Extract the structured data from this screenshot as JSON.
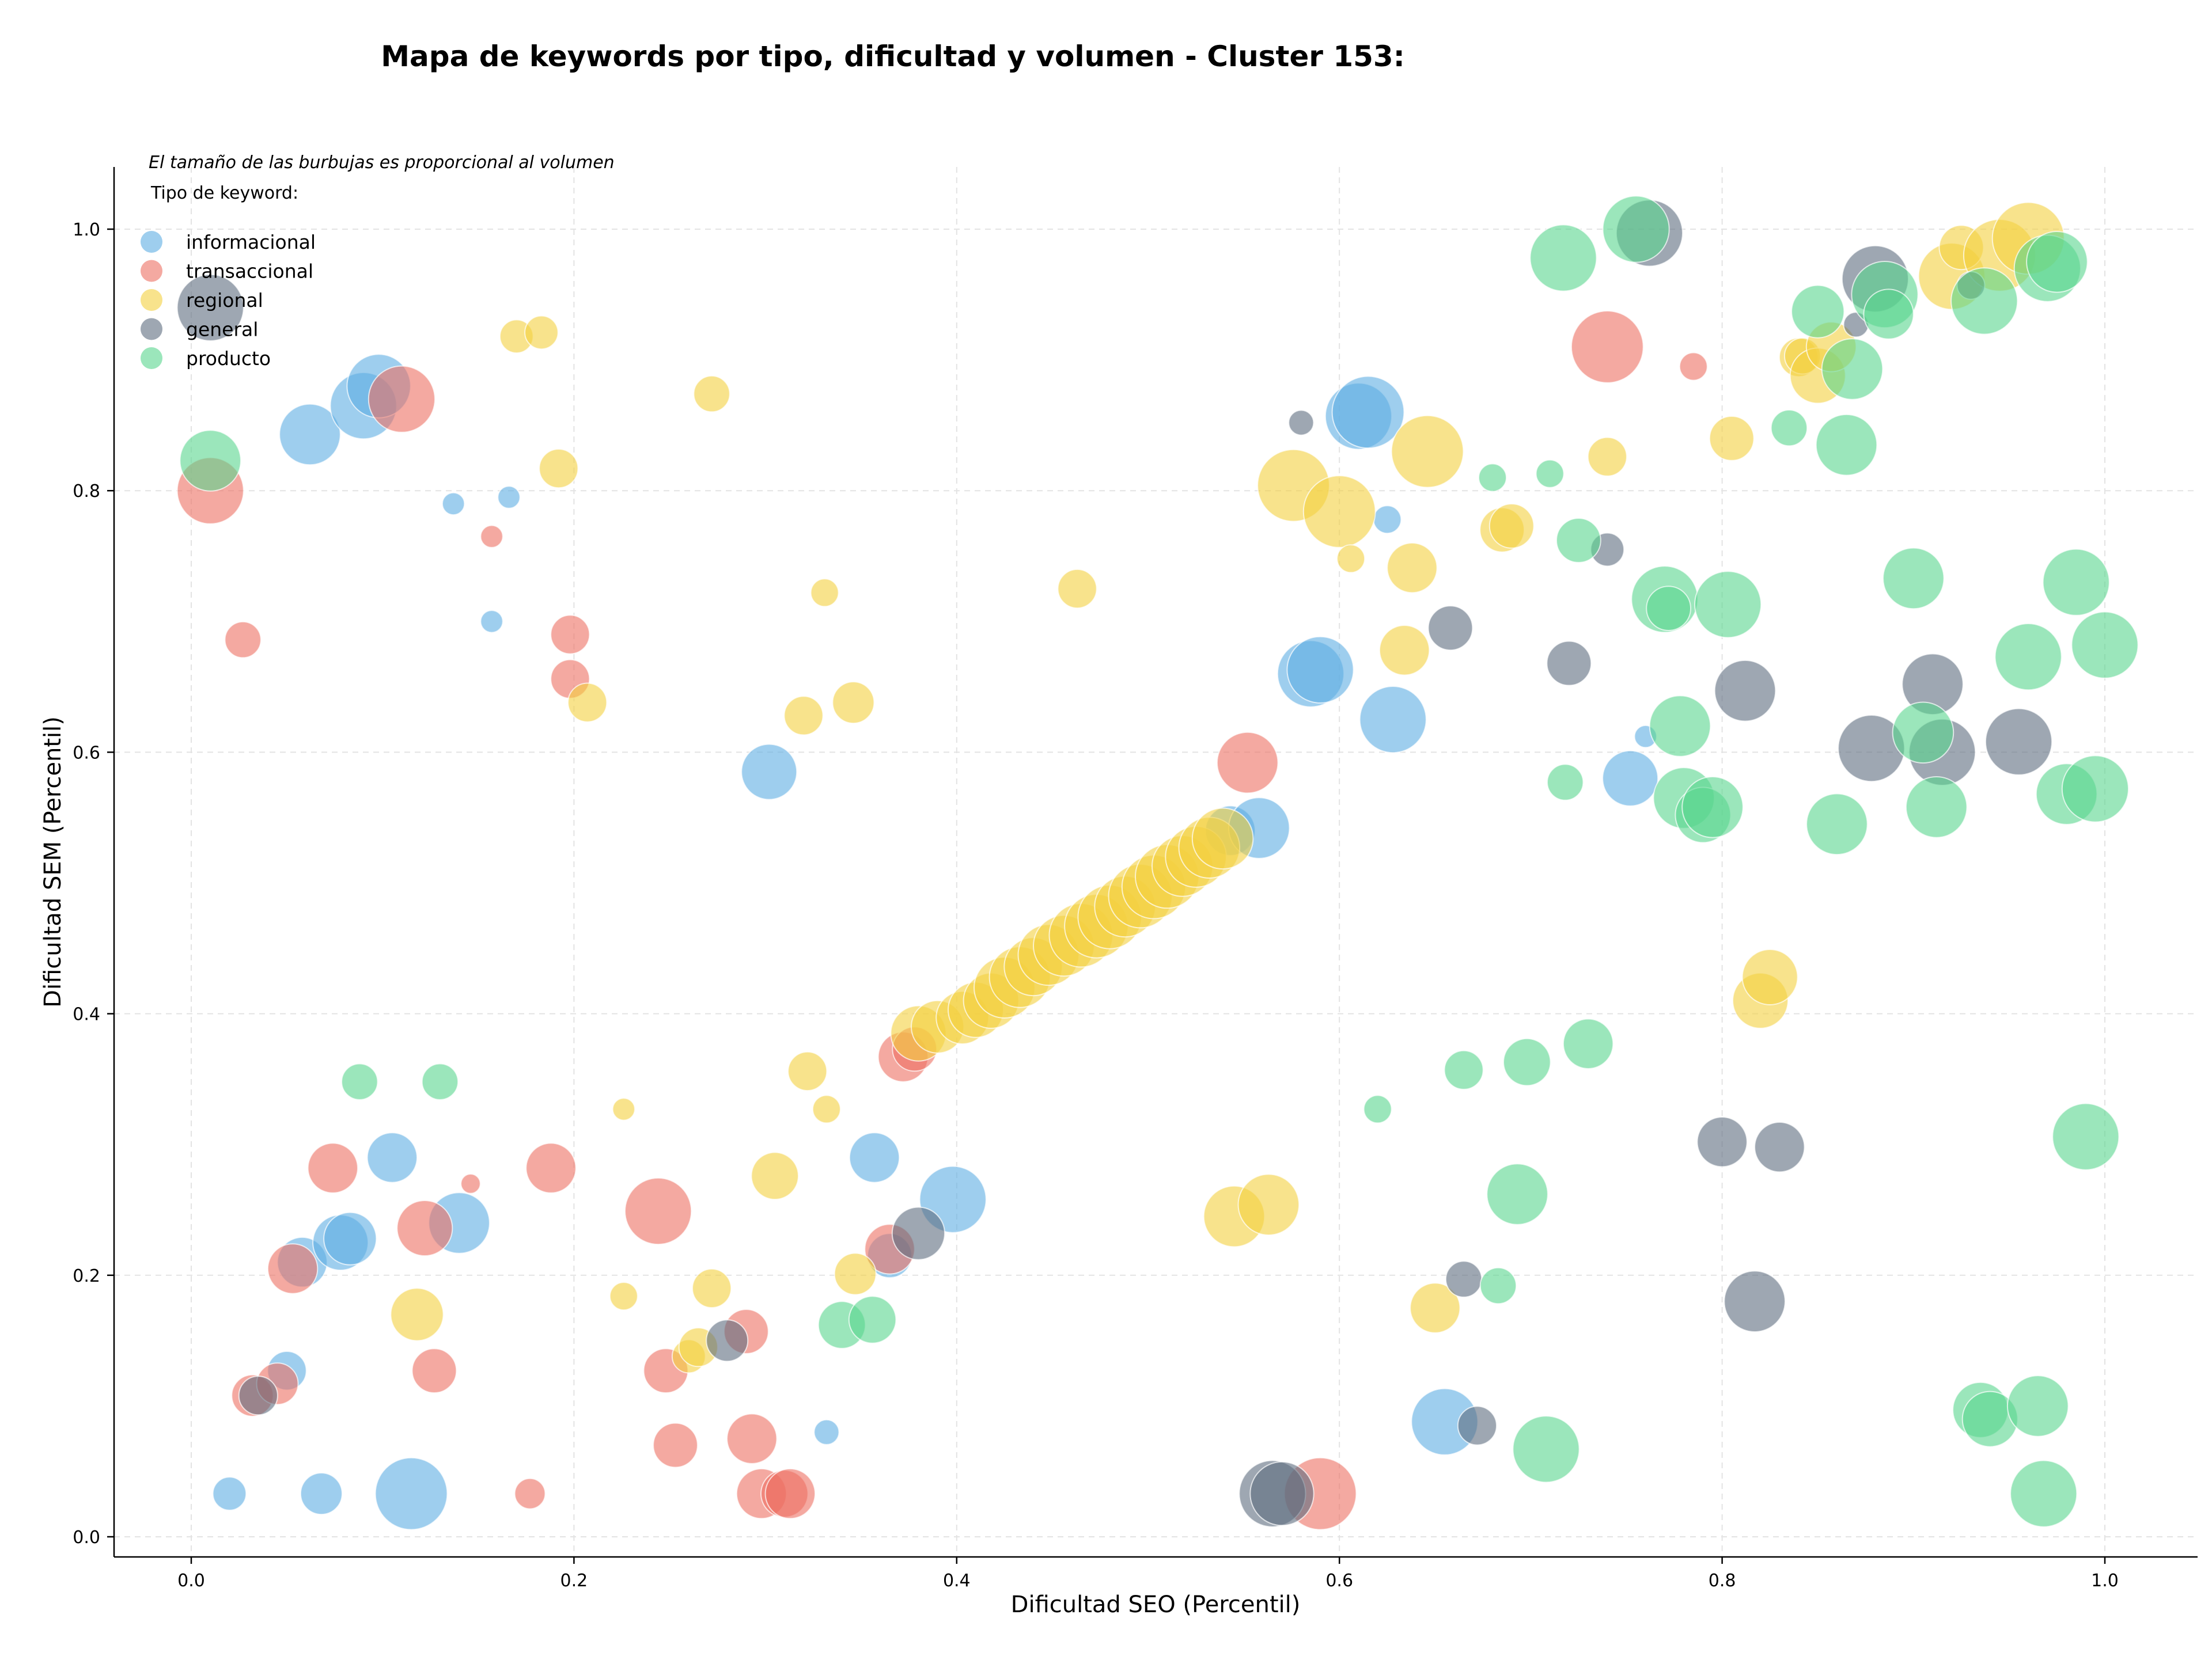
{
  "chart_data": {
    "type": "scatter",
    "title": "Mapa de keywords por tipo, dificultad y volumen - Cluster 153:",
    "xlabel": "Dificultad SEO (Percentil)",
    "ylabel": "Dificultad SEM (Percentil)",
    "xlim": [
      -0.04,
      1.05
    ],
    "ylim": [
      -0.015,
      1.05
    ],
    "x_ticks": [
      "0.0",
      "0.2",
      "0.4",
      "0.6",
      "0.8",
      "1.0"
    ],
    "y_ticks": [
      "0.0",
      "0.2",
      "0.4",
      "0.6",
      "0.8",
      "1.0"
    ],
    "grid": true,
    "annotation": "El tamaño de las burbujas es proporcional al volumen",
    "legend_title": "Tipo de keyword:",
    "legend_position": "top-left",
    "series": [
      {
        "name": "informacional",
        "color": "#5dade2",
        "points": [
          [
            0.02,
            0.033,
            1.2
          ],
          [
            0.068,
            0.033,
            1.5
          ],
          [
            0.115,
            0.033,
            2.6
          ],
          [
            0.05,
            0.127,
            1.4
          ],
          [
            0.058,
            0.21,
            1.8
          ],
          [
            0.078,
            0.225,
            2.0
          ],
          [
            0.083,
            0.228,
            1.9
          ],
          [
            0.105,
            0.29,
            1.8
          ],
          [
            0.14,
            0.24,
            2.2
          ],
          [
            0.062,
            0.843,
            2.2
          ],
          [
            0.09,
            0.865,
            2.4
          ],
          [
            0.098,
            0.88,
            2.3
          ],
          [
            0.137,
            0.79,
            0.8
          ],
          [
            0.166,
            0.795,
            0.8
          ],
          [
            0.157,
            0.7,
            0.8
          ],
          [
            0.302,
            0.585,
            2.0
          ],
          [
            0.332,
            0.08,
            0.9
          ],
          [
            0.357,
            0.29,
            1.8
          ],
          [
            0.365,
            0.215,
            1.6
          ],
          [
            0.398,
            0.258,
            2.4
          ],
          [
            0.543,
            0.54,
            1.8
          ],
          [
            0.558,
            0.542,
            2.2
          ],
          [
            0.585,
            0.66,
            2.4
          ],
          [
            0.59,
            0.663,
            2.4
          ],
          [
            0.61,
            0.857,
            2.4
          ],
          [
            0.615,
            0.86,
            2.6
          ],
          [
            0.625,
            0.778,
            1.0
          ],
          [
            0.628,
            0.625,
            2.4
          ],
          [
            0.655,
            0.088,
            2.4
          ],
          [
            0.752,
            0.58,
            2.0
          ],
          [
            0.76,
            0.612,
            0.8
          ]
        ]
      },
      {
        "name": "transaccional",
        "color": "#ec7063",
        "points": [
          [
            0.01,
            0.8,
            2.4
          ],
          [
            0.027,
            0.686,
            1.3
          ],
          [
            0.032,
            0.108,
            1.5
          ],
          [
            0.045,
            0.117,
            1.5
          ],
          [
            0.053,
            0.205,
            1.8
          ],
          [
            0.074,
            0.282,
            1.8
          ],
          [
            0.11,
            0.87,
            2.4
          ],
          [
            0.122,
            0.236,
            2.0
          ],
          [
            0.127,
            0.127,
            1.6
          ],
          [
            0.146,
            0.27,
            0.7
          ],
          [
            0.157,
            0.765,
            0.8
          ],
          [
            0.177,
            0.033,
            1.1
          ],
          [
            0.188,
            0.282,
            1.8
          ],
          [
            0.198,
            0.69,
            1.4
          ],
          [
            0.198,
            0.656,
            1.4
          ],
          [
            0.244,
            0.249,
            2.4
          ],
          [
            0.248,
            0.127,
            1.6
          ],
          [
            0.253,
            0.07,
            1.6
          ],
          [
            0.29,
            0.157,
            1.6
          ],
          [
            0.293,
            0.075,
            1.8
          ],
          [
            0.298,
            0.033,
            1.8
          ],
          [
            0.31,
            0.033,
            1.7
          ],
          [
            0.313,
            0.033,
            1.8
          ],
          [
            0.365,
            0.22,
            1.8
          ],
          [
            0.372,
            0.367,
            1.8
          ],
          [
            0.378,
            0.373,
            1.6
          ],
          [
            0.552,
            0.592,
            2.2
          ],
          [
            0.59,
            0.033,
            2.6
          ],
          [
            0.74,
            0.91,
            2.6
          ],
          [
            0.785,
            0.895,
            1.0
          ]
        ]
      },
      {
        "name": "regional",
        "color": "#f4d03f",
        "points": [
          [
            0.118,
            0.17,
            1.9
          ],
          [
            0.17,
            0.918,
            1.2
          ],
          [
            0.183,
            0.921,
            1.2
          ],
          [
            0.192,
            0.817,
            1.4
          ],
          [
            0.207,
            0.638,
            1.4
          ],
          [
            0.226,
            0.327,
            0.8
          ],
          [
            0.226,
            0.184,
            1.0
          ],
          [
            0.26,
            0.138,
            1.2
          ],
          [
            0.265,
            0.145,
            1.4
          ],
          [
            0.272,
            0.19,
            1.4
          ],
          [
            0.272,
            0.874,
            1.3
          ],
          [
            0.305,
            0.276,
            1.7
          ],
          [
            0.32,
            0.628,
            1.4
          ],
          [
            0.322,
            0.356,
            1.4
          ],
          [
            0.331,
            0.722,
            1.0
          ],
          [
            0.332,
            0.327,
            1.0
          ],
          [
            0.346,
            0.638,
            1.5
          ],
          [
            0.347,
            0.201,
            1.5
          ],
          [
            0.463,
            0.725,
            1.4
          ],
          [
            0.545,
            0.245,
            2.2
          ],
          [
            0.563,
            0.254,
            2.2
          ],
          [
            0.576,
            0.804,
            2.6
          ],
          [
            0.6,
            0.784,
            2.6
          ],
          [
            0.606,
            0.748,
            1.0
          ],
          [
            0.634,
            0.678,
            1.8
          ],
          [
            0.638,
            0.741,
            1.8
          ],
          [
            0.646,
            0.83,
            2.6
          ],
          [
            0.65,
            0.175,
            1.8
          ],
          [
            0.685,
            0.77,
            1.6
          ],
          [
            0.69,
            0.773,
            1.6
          ],
          [
            0.74,
            0.826,
            1.4
          ],
          [
            0.805,
            0.84,
            1.6
          ],
          [
            0.82,
            0.41,
            2.0
          ],
          [
            0.825,
            0.428,
            2.0
          ],
          [
            0.84,
            0.902,
            1.4
          ],
          [
            0.842,
            0.903,
            1.3
          ],
          [
            0.85,
            0.888,
            2.0
          ],
          [
            0.857,
            0.91,
            1.8
          ],
          [
            0.92,
            0.964,
            2.4
          ],
          [
            0.925,
            0.986,
            1.6
          ],
          [
            0.945,
            0.98,
            2.6
          ],
          [
            0.96,
            0.993,
            2.6
          ],
          [
            0.38,
            0.385,
            2.0
          ],
          [
            0.39,
            0.39,
            1.9
          ],
          [
            0.403,
            0.397,
            1.9
          ],
          [
            0.41,
            0.403,
            2.0
          ],
          [
            0.418,
            0.41,
            2.0
          ],
          [
            0.425,
            0.42,
            2.2
          ],
          [
            0.433,
            0.428,
            2.2
          ],
          [
            0.44,
            0.436,
            2.1
          ],
          [
            0.448,
            0.445,
            2.2
          ],
          [
            0.456,
            0.452,
            2.2
          ],
          [
            0.465,
            0.46,
            2.3
          ],
          [
            0.473,
            0.467,
            2.3
          ],
          [
            0.48,
            0.474,
            2.3
          ],
          [
            0.488,
            0.482,
            2.2
          ],
          [
            0.496,
            0.49,
            2.3
          ],
          [
            0.503,
            0.497,
            2.3
          ],
          [
            0.51,
            0.505,
            2.3
          ],
          [
            0.518,
            0.513,
            2.2
          ],
          [
            0.525,
            0.52,
            2.2
          ],
          [
            0.532,
            0.527,
            2.2
          ],
          [
            0.539,
            0.534,
            2.2
          ]
        ]
      },
      {
        "name": "general",
        "color": "#5d6d7e",
        "points": [
          [
            0.01,
            0.94,
            2.4
          ],
          [
            0.035,
            0.108,
            1.4
          ],
          [
            0.28,
            0.15,
            1.5
          ],
          [
            0.38,
            0.232,
            1.9
          ],
          [
            0.565,
            0.033,
            2.4
          ],
          [
            0.57,
            0.033,
            2.3
          ],
          [
            0.58,
            0.852,
            0.9
          ],
          [
            0.658,
            0.695,
            1.6
          ],
          [
            0.665,
            0.197,
            1.3
          ],
          [
            0.672,
            0.085,
            1.4
          ],
          [
            0.72,
            0.668,
            1.6
          ],
          [
            0.74,
            0.755,
            1.2
          ],
          [
            0.762,
            0.997,
            2.4
          ],
          [
            0.8,
            0.302,
            1.8
          ],
          [
            0.812,
            0.647,
            2.2
          ],
          [
            0.817,
            0.18,
            2.2
          ],
          [
            0.83,
            0.298,
            1.8
          ],
          [
            0.87,
            0.927,
            0.9
          ],
          [
            0.878,
            0.603,
            2.4
          ],
          [
            0.88,
            0.962,
            2.4
          ],
          [
            0.91,
            0.652,
            2.2
          ],
          [
            0.915,
            0.6,
            2.4
          ],
          [
            0.93,
            0.957,
            1.0
          ],
          [
            0.955,
            0.608,
            2.4
          ]
        ]
      },
      {
        "name": "producto",
        "color": "#58d68d",
        "points": [
          [
            0.01,
            0.823,
            2.2
          ],
          [
            0.088,
            0.348,
            1.3
          ],
          [
            0.13,
            0.348,
            1.3
          ],
          [
            0.34,
            0.162,
            1.7
          ],
          [
            0.356,
            0.166,
            1.7
          ],
          [
            0.62,
            0.327,
            1.0
          ],
          [
            0.665,
            0.357,
            1.4
          ],
          [
            0.68,
            0.81,
            1.0
          ],
          [
            0.683,
            0.192,
            1.3
          ],
          [
            0.693,
            0.262,
            2.2
          ],
          [
            0.698,
            0.363,
            1.7
          ],
          [
            0.708,
            0.067,
            2.4
          ],
          [
            0.71,
            0.813,
            1.0
          ],
          [
            0.717,
            0.978,
            2.4
          ],
          [
            0.718,
            0.577,
            1.3
          ],
          [
            0.725,
            0.762,
            1.6
          ],
          [
            0.73,
            0.377,
            1.8
          ],
          [
            0.755,
            1.0,
            2.4
          ],
          [
            0.77,
            0.717,
            2.4
          ],
          [
            0.772,
            0.71,
            1.6
          ],
          [
            0.78,
            0.565,
            2.2
          ],
          [
            0.778,
            0.62,
            2.2
          ],
          [
            0.79,
            0.552,
            2.0
          ],
          [
            0.795,
            0.558,
            2.2
          ],
          [
            0.803,
            0.713,
            2.4
          ],
          [
            0.835,
            0.848,
            1.3
          ],
          [
            0.86,
            0.545,
            2.2
          ],
          [
            0.85,
            0.937,
            1.9
          ],
          [
            0.865,
            0.835,
            2.2
          ],
          [
            0.868,
            0.893,
            2.2
          ],
          [
            0.885,
            0.95,
            2.4
          ],
          [
            0.887,
            0.935,
            1.8
          ],
          [
            0.9,
            0.733,
            2.2
          ],
          [
            0.905,
            0.615,
            2.2
          ],
          [
            0.912,
            0.558,
            2.2
          ],
          [
            0.935,
            0.097,
            2.0
          ],
          [
            0.937,
            0.945,
            2.4
          ],
          [
            0.94,
            0.09,
            2.0
          ],
          [
            0.96,
            0.673,
            2.4
          ],
          [
            0.965,
            0.1,
            2.2
          ],
          [
            0.968,
            0.033,
            2.4
          ],
          [
            0.97,
            0.97,
            2.4
          ],
          [
            0.975,
            0.975,
            2.2
          ],
          [
            0.98,
            0.568,
            2.2
          ],
          [
            0.985,
            0.73,
            2.4
          ],
          [
            0.99,
            0.306,
            2.4
          ],
          [
            0.995,
            0.572,
            2.4
          ],
          [
            1.0,
            0.682,
            2.4
          ]
        ]
      }
    ]
  }
}
